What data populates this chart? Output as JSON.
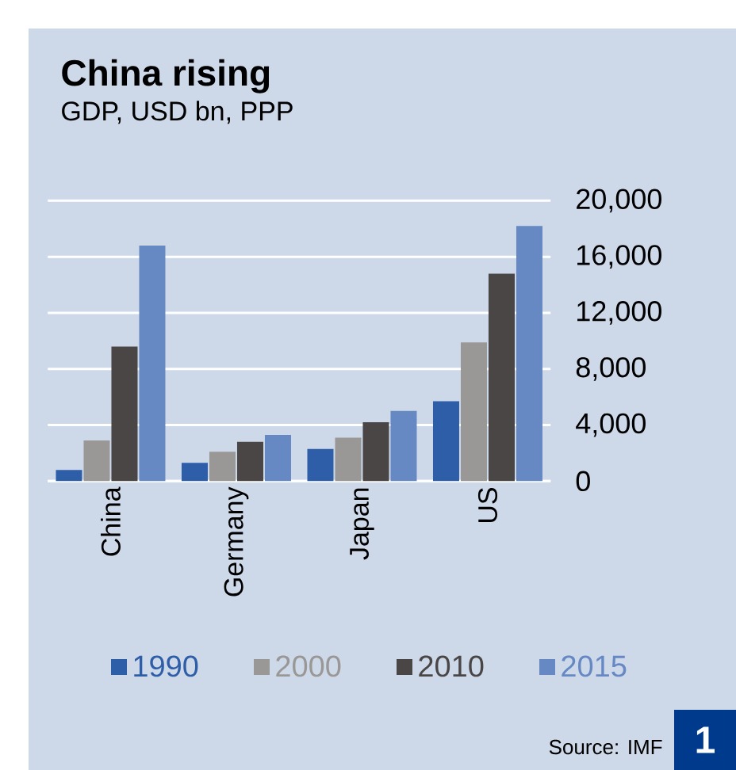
{
  "chart_data": {
    "type": "bar",
    "title": "China rising",
    "subtitle": "GDP, USD bn, PPP",
    "categories": [
      "China",
      "Germany",
      "Japan",
      "US"
    ],
    "series": [
      {
        "name": "1990",
        "color": "#2f5ea8",
        "values": [
          800,
          1300,
          2300,
          5700
        ]
      },
      {
        "name": "2000",
        "color": "#999896",
        "values": [
          2900,
          2100,
          3100,
          9900
        ]
      },
      {
        "name": "2010",
        "color": "#4a4646",
        "values": [
          9600,
          2800,
          4200,
          14800
        ]
      },
      {
        "name": "2015",
        "color": "#6688c3",
        "values": [
          16800,
          3300,
          5000,
          18200
        ]
      }
    ],
    "ylim": [
      0,
      20000
    ],
    "yticks": [
      {
        "value": 0,
        "label": "0"
      },
      {
        "value": 4000,
        "label": "4,000"
      },
      {
        "value": 8000,
        "label": "8,000"
      },
      {
        "value": 12000,
        "label": "12,000"
      },
      {
        "value": 16000,
        "label": "16,000"
      },
      {
        "value": 20000,
        "label": "20,000"
      }
    ],
    "grid": "y",
    "legend": "bottom",
    "annotations": [
      "Source: IMF",
      "1"
    ]
  }
}
